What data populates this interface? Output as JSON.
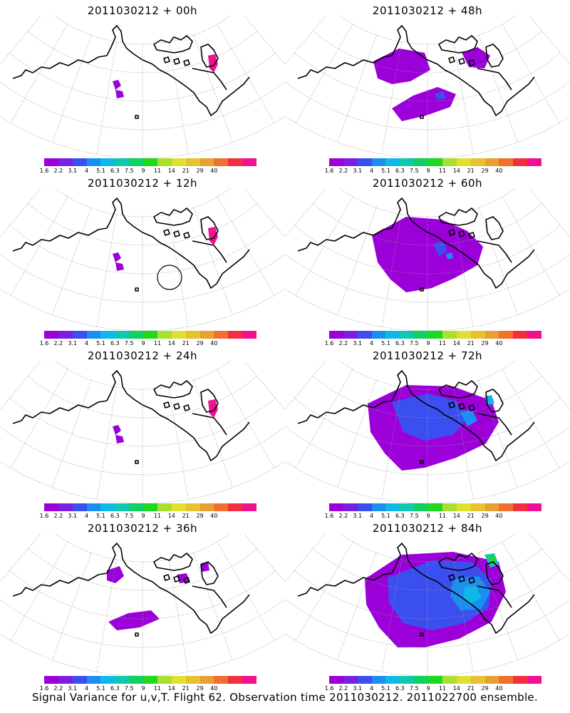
{
  "panels": [
    {
      "title": "2011030212 + 00h",
      "signal": "low"
    },
    {
      "title": "2011030212 + 48h",
      "signal": "medium"
    },
    {
      "title": "2011030212 + 12h",
      "signal": "low"
    },
    {
      "title": "2011030212 + 60h",
      "signal": "medium-high"
    },
    {
      "title": "2011030212 + 24h",
      "signal": "low"
    },
    {
      "title": "2011030212 + 72h",
      "signal": "high"
    },
    {
      "title": "2011030212 + 36h",
      "signal": "low-medium"
    },
    {
      "title": "2011030212 + 84h",
      "signal": "very-high"
    }
  ],
  "colorbar": {
    "labels": [
      "1.6",
      "2.2",
      "3.1",
      "4",
      "5.1",
      "6.3",
      "7.5",
      "9",
      "11",
      "14",
      "21",
      "29",
      "40"
    ],
    "colors": [
      "#9b00d9",
      "#7a1fe0",
      "#3b4ff0",
      "#1a8ff0",
      "#10b8e8",
      "#10c8b0",
      "#10d060",
      "#20d820",
      "#a8e030",
      "#e0e030",
      "#e8c030",
      "#e8a030",
      "#f07030",
      "#f03040",
      "#f01090"
    ]
  },
  "caption": "Signal Variance for u,v,T. Flight 62. Observation time 2011030212. 2011022700 ensemble."
}
